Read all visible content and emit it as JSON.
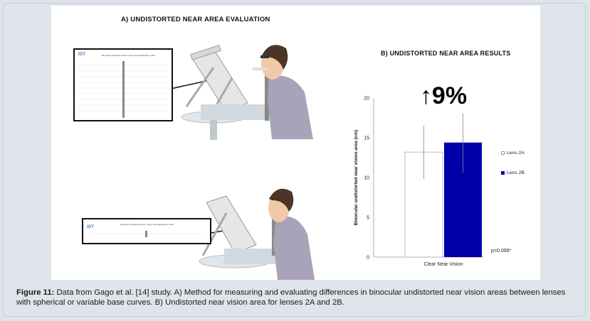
{
  "panel_a": {
    "title": "A) UNDISTORTED NEAR AREA EVALUATION",
    "doc_title": "Binocular Undistorted Near Vision Area Evaluation Chart",
    "logo": "IOT"
  },
  "chart_data": {
    "type": "bar",
    "title": "B) UNDISTORTED NEAR AREA RESULTS",
    "categories": [
      "Clear Near Vision"
    ],
    "series": [
      {
        "name": "Lens 2A",
        "values": [
          13.2
        ],
        "error_low": [
          9.8
        ],
        "error_high": [
          16.5
        ],
        "color": "#ffffff"
      },
      {
        "name": "Lens 2B",
        "values": [
          14.4
        ],
        "error_low": [
          10.6
        ],
        "error_high": [
          18.1
        ],
        "color": "#0000aa"
      }
    ],
    "ylabel": "Binocular undistorted near vision area (cm)",
    "xlabel": "",
    "ylim": [
      0,
      20
    ],
    "yticks": [
      "0",
      "5",
      "10",
      "15",
      "20"
    ],
    "annotation": "↑9%",
    "p_value": "p=0.006*",
    "legend_position": "right",
    "grid": false
  },
  "caption": {
    "label": "Figure 11:",
    "text": " Data from Gago et al. [14] study. A) Method for measuring and evaluating differences in binocular undistorted near vision areas between lenses with spherical or variable base curves. B) Undistorted near vision area for lenses 2A and 2B."
  }
}
